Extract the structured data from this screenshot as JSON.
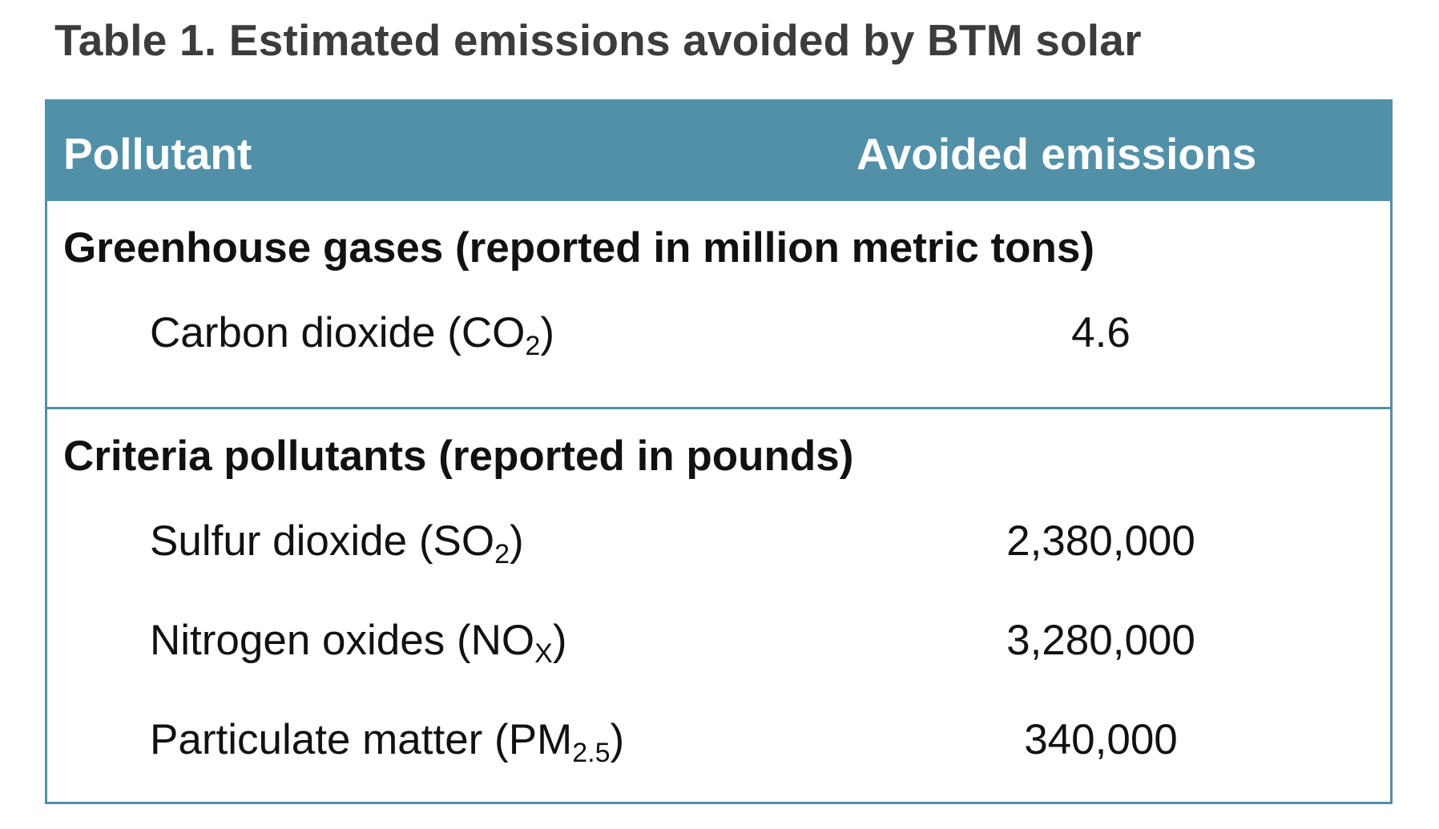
{
  "title": "Table 1. Estimated emissions avoided by BTM solar",
  "header": {
    "pollutant": "Pollutant",
    "avoided": "Avoided emissions"
  },
  "sections": [
    {
      "heading": "Greenhouse gases (reported in million metric tons)",
      "rows": [
        {
          "name": "Carbon dioxide (CO",
          "sub": "2",
          "suffix": ")",
          "value": "4.6"
        }
      ]
    },
    {
      "heading": "Criteria pollutants (reported in pounds)",
      "rows": [
        {
          "name": "Sulfur dioxide (SO",
          "sub": "2",
          "suffix": ")",
          "value": "2,380,000"
        },
        {
          "name": "Nitrogen oxides (NO",
          "sub": "X",
          "suffix": ")",
          "value": "3,280,000"
        },
        {
          "name": "Particulate matter (PM",
          "sub": "2.5",
          "suffix": ")",
          "value": "340,000"
        }
      ]
    }
  ]
}
